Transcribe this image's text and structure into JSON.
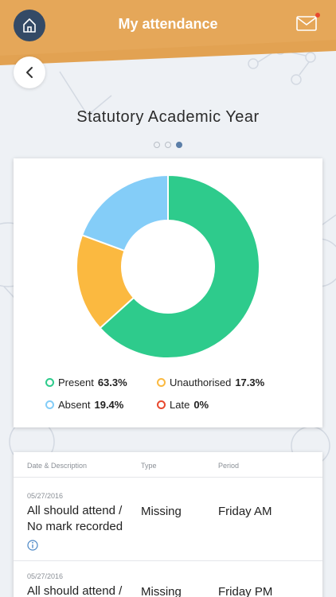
{
  "header": {
    "title": "My attendance",
    "home_icon": "home-icon",
    "mail_icon": "mail-icon",
    "back_icon": "chevron-left-icon",
    "accent": "#e2a252"
  },
  "section_title": "Statutory Academic Year",
  "pager": {
    "count": 3,
    "active": 2
  },
  "chart_data": {
    "type": "pie",
    "style": "donut",
    "slices": [
      {
        "label": "Present",
        "value": 63.3,
        "value_label": "63.3%",
        "color": "#2ecb8c"
      },
      {
        "label": "Unauthorised",
        "value": 17.3,
        "value_label": "17.3%",
        "color": "#fbb940"
      },
      {
        "label": "Absent",
        "value": 19.4,
        "value_label": "19.4%",
        "color": "#84cdf8"
      },
      {
        "label": "Late",
        "value": 0,
        "value_label": "0%",
        "color": "#e8492f"
      }
    ]
  },
  "table": {
    "headers": {
      "date_desc": "Date & Description",
      "type": "Type",
      "period": "Period"
    },
    "rows": [
      {
        "date": "05/27/2016",
        "desc_line1": "All should attend /",
        "desc_line2": "No mark recorded",
        "type": "Missing",
        "period": "Friday AM"
      },
      {
        "date": "05/27/2016",
        "desc_line1": "All should attend /",
        "type": "Missing",
        "period": "Friday PM"
      }
    ]
  }
}
